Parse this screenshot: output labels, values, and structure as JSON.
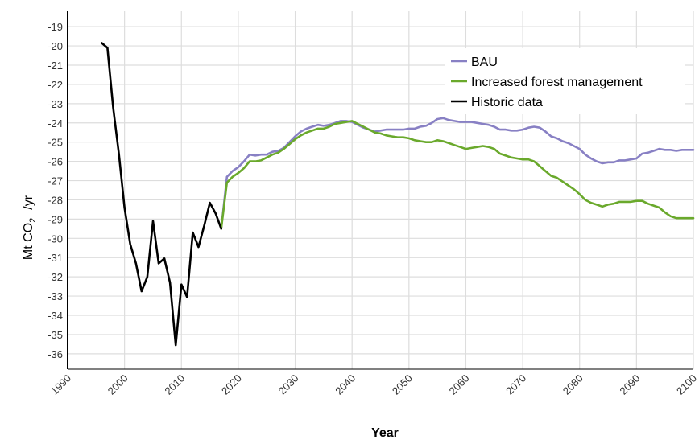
{
  "chart_data": {
    "type": "line",
    "xlabel": "Year",
    "ylabel": "Mt CO2 /yr",
    "ylabel_parts": {
      "main": "Mt CO",
      "sub": "2",
      "unit": "/yr"
    },
    "xlim": [
      1990,
      2100
    ],
    "ylim": [
      -36.8,
      -18.2
    ],
    "x_ticks": [
      "1990",
      "2000",
      "2010",
      "2020",
      "2030",
      "2040",
      "2050",
      "2060",
      "2070",
      "2080",
      "2090",
      "2100"
    ],
    "y_ticks": [
      "-19",
      "-20",
      "-21",
      "-22",
      "-23",
      "-24",
      "-25",
      "-26",
      "-27",
      "-28",
      "-29",
      "-30",
      "-31",
      "-32",
      "-33",
      "-34",
      "-35",
      "-36"
    ],
    "grid": true,
    "legend_position": "top-right",
    "series": [
      {
        "name": "BAU",
        "color": "#8880c4",
        "points": [
          [
            2017,
            -29.5
          ],
          [
            2018,
            -26.8
          ],
          [
            2019,
            -26.5
          ],
          [
            2020,
            -26.3
          ],
          [
            2021,
            -26.0
          ],
          [
            2022,
            -25.65
          ],
          [
            2023,
            -25.7
          ],
          [
            2024,
            -25.65
          ],
          [
            2025,
            -25.65
          ],
          [
            2026,
            -25.5
          ],
          [
            2027,
            -25.45
          ],
          [
            2028,
            -25.3
          ],
          [
            2029,
            -25.0
          ],
          [
            2030,
            -24.7
          ],
          [
            2031,
            -24.45
          ],
          [
            2032,
            -24.3
          ],
          [
            2033,
            -24.2
          ],
          [
            2034,
            -24.1
          ],
          [
            2035,
            -24.15
          ],
          [
            2036,
            -24.1
          ],
          [
            2037,
            -24.0
          ],
          [
            2038,
            -23.9
          ],
          [
            2039,
            -23.9
          ],
          [
            2040,
            -23.95
          ],
          [
            2041,
            -24.1
          ],
          [
            2042,
            -24.25
          ],
          [
            2043,
            -24.35
          ],
          [
            2044,
            -24.45
          ],
          [
            2045,
            -24.4
          ],
          [
            2046,
            -24.35
          ],
          [
            2047,
            -24.35
          ],
          [
            2048,
            -24.35
          ],
          [
            2049,
            -24.35
          ],
          [
            2050,
            -24.3
          ],
          [
            2051,
            -24.3
          ],
          [
            2052,
            -24.2
          ],
          [
            2053,
            -24.15
          ],
          [
            2054,
            -24.0
          ],
          [
            2055,
            -23.8
          ],
          [
            2056,
            -23.75
          ],
          [
            2057,
            -23.85
          ],
          [
            2058,
            -23.9
          ],
          [
            2059,
            -23.95
          ],
          [
            2060,
            -23.95
          ],
          [
            2061,
            -23.95
          ],
          [
            2062,
            -24.0
          ],
          [
            2063,
            -24.05
          ],
          [
            2064,
            -24.1
          ],
          [
            2065,
            -24.2
          ],
          [
            2066,
            -24.35
          ],
          [
            2067,
            -24.35
          ],
          [
            2068,
            -24.4
          ],
          [
            2069,
            -24.4
          ],
          [
            2070,
            -24.35
          ],
          [
            2071,
            -24.25
          ],
          [
            2072,
            -24.2
          ],
          [
            2073,
            -24.25
          ],
          [
            2074,
            -24.45
          ],
          [
            2075,
            -24.7
          ],
          [
            2076,
            -24.8
          ],
          [
            2077,
            -24.95
          ],
          [
            2078,
            -25.05
          ],
          [
            2079,
            -25.2
          ],
          [
            2080,
            -25.35
          ],
          [
            2081,
            -25.65
          ],
          [
            2082,
            -25.85
          ],
          [
            2083,
            -26.0
          ],
          [
            2084,
            -26.1
          ],
          [
            2085,
            -26.05
          ],
          [
            2086,
            -26.05
          ],
          [
            2087,
            -25.95
          ],
          [
            2088,
            -25.95
          ],
          [
            2089,
            -25.9
          ],
          [
            2090,
            -25.85
          ],
          [
            2091,
            -25.6
          ],
          [
            2092,
            -25.55
          ],
          [
            2093,
            -25.45
          ],
          [
            2094,
            -25.35
          ],
          [
            2095,
            -25.4
          ],
          [
            2096,
            -25.4
          ],
          [
            2097,
            -25.45
          ],
          [
            2098,
            -25.4
          ],
          [
            2099,
            -25.4
          ],
          [
            2100,
            -25.4
          ]
        ]
      },
      {
        "name": "Increased forest management",
        "color": "#6aa92c",
        "points": [
          [
            2017,
            -29.5
          ],
          [
            2018,
            -27.1
          ],
          [
            2019,
            -26.8
          ],
          [
            2020,
            -26.6
          ],
          [
            2021,
            -26.35
          ],
          [
            2022,
            -26.0
          ],
          [
            2023,
            -26.0
          ],
          [
            2024,
            -25.95
          ],
          [
            2025,
            -25.8
          ],
          [
            2026,
            -25.65
          ],
          [
            2027,
            -25.55
          ],
          [
            2028,
            -25.35
          ],
          [
            2029,
            -25.1
          ],
          [
            2030,
            -24.85
          ],
          [
            2031,
            -24.65
          ],
          [
            2032,
            -24.5
          ],
          [
            2033,
            -24.4
          ],
          [
            2034,
            -24.3
          ],
          [
            2035,
            -24.3
          ],
          [
            2036,
            -24.2
          ],
          [
            2037,
            -24.05
          ],
          [
            2038,
            -24.0
          ],
          [
            2039,
            -23.95
          ],
          [
            2040,
            -23.9
          ],
          [
            2041,
            -24.05
          ],
          [
            2042,
            -24.2
          ],
          [
            2043,
            -24.35
          ],
          [
            2044,
            -24.5
          ],
          [
            2045,
            -24.55
          ],
          [
            2046,
            -24.65
          ],
          [
            2047,
            -24.7
          ],
          [
            2048,
            -24.75
          ],
          [
            2049,
            -24.75
          ],
          [
            2050,
            -24.8
          ],
          [
            2051,
            -24.9
          ],
          [
            2052,
            -24.95
          ],
          [
            2053,
            -25.0
          ],
          [
            2054,
            -25.0
          ],
          [
            2055,
            -24.9
          ],
          [
            2056,
            -24.95
          ],
          [
            2057,
            -25.05
          ],
          [
            2058,
            -25.15
          ],
          [
            2059,
            -25.25
          ],
          [
            2060,
            -25.35
          ],
          [
            2061,
            -25.3
          ],
          [
            2062,
            -25.25
          ],
          [
            2063,
            -25.2
          ],
          [
            2064,
            -25.25
          ],
          [
            2065,
            -25.35
          ],
          [
            2066,
            -25.6
          ],
          [
            2067,
            -25.7
          ],
          [
            2068,
            -25.8
          ],
          [
            2069,
            -25.85
          ],
          [
            2070,
            -25.9
          ],
          [
            2071,
            -25.9
          ],
          [
            2072,
            -26.0
          ],
          [
            2073,
            -26.25
          ],
          [
            2074,
            -26.5
          ],
          [
            2075,
            -26.75
          ],
          [
            2076,
            -26.85
          ],
          [
            2077,
            -27.05
          ],
          [
            2078,
            -27.25
          ],
          [
            2079,
            -27.45
          ],
          [
            2080,
            -27.7
          ],
          [
            2081,
            -28.0
          ],
          [
            2082,
            -28.15
          ],
          [
            2083,
            -28.25
          ],
          [
            2084,
            -28.35
          ],
          [
            2085,
            -28.25
          ],
          [
            2086,
            -28.2
          ],
          [
            2087,
            -28.1
          ],
          [
            2088,
            -28.1
          ],
          [
            2089,
            -28.1
          ],
          [
            2090,
            -28.05
          ],
          [
            2091,
            -28.05
          ],
          [
            2092,
            -28.2
          ],
          [
            2093,
            -28.3
          ],
          [
            2094,
            -28.4
          ],
          [
            2095,
            -28.65
          ],
          [
            2096,
            -28.85
          ],
          [
            2097,
            -28.95
          ],
          [
            2098,
            -28.95
          ],
          [
            2099,
            -28.95
          ],
          [
            2100,
            -28.95
          ]
        ]
      },
      {
        "name": "Historic data",
        "color": "#000000",
        "points": [
          [
            1996,
            -19.85
          ],
          [
            1997,
            -20.1
          ],
          [
            1998,
            -23.2
          ],
          [
            1999,
            -25.6
          ],
          [
            2000,
            -28.4
          ],
          [
            2001,
            -30.3
          ],
          [
            2002,
            -31.3
          ],
          [
            2003,
            -32.75
          ],
          [
            2004,
            -32.0
          ],
          [
            2005,
            -29.1
          ],
          [
            2006,
            -31.3
          ],
          [
            2007,
            -31.05
          ],
          [
            2008,
            -32.3
          ],
          [
            2009,
            -35.55
          ],
          [
            2010,
            -32.4
          ],
          [
            2011,
            -33.05
          ],
          [
            2012,
            -29.7
          ],
          [
            2013,
            -30.45
          ],
          [
            2014,
            -29.35
          ],
          [
            2015,
            -28.15
          ],
          [
            2016,
            -28.7
          ],
          [
            2017,
            -29.5
          ]
        ]
      }
    ]
  }
}
